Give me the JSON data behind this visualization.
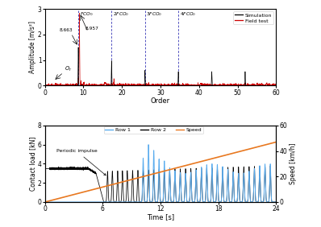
{
  "top": {
    "xlim": [
      0,
      60
    ],
    "ylim": [
      0,
      3
    ],
    "yticks": [
      0,
      1,
      2,
      3
    ],
    "xticks": [
      0,
      10,
      20,
      30,
      40,
      50,
      60
    ],
    "xlabel": "Order",
    "ylabel": "Amplitude [m/s²]",
    "vlines": [
      8.663,
      17.326,
      25.989,
      34.652
    ],
    "vline_labels": [
      "$FCO_0$",
      "$2FCO_0$",
      "$3FCO_0$",
      "$4FCO_0$"
    ],
    "legend_sim": "Simulation",
    "legend_field": "Field test",
    "sim_color": "#000000",
    "field_color": "#cc0000"
  },
  "bottom": {
    "xlim": [
      0,
      24
    ],
    "ylim": [
      0,
      8
    ],
    "ylim2": [
      0,
      60
    ],
    "xticks": [
      0,
      6,
      12,
      18,
      24
    ],
    "yticks": [
      0,
      2,
      4,
      6,
      8
    ],
    "yticks2": [
      0,
      20,
      40,
      60
    ],
    "xlabel": "Time [s]",
    "ylabel": "Contact load [kN]",
    "ylabel2": "Speed [km/h]",
    "row1_color": "#5aacee",
    "row2_color": "#000000",
    "speed_color": "#e87820",
    "legend_row1": "Row 1",
    "legend_row2": "Row 2",
    "legend_speed": "Speed"
  }
}
